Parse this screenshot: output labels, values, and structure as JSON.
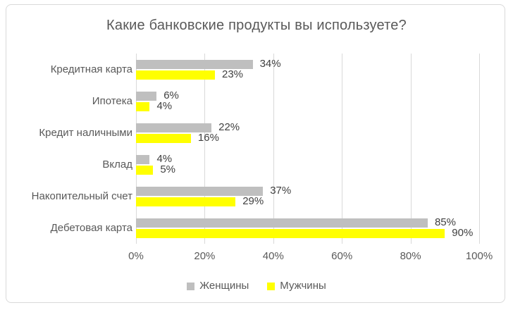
{
  "chart_data": {
    "type": "bar",
    "orientation": "horizontal",
    "title": "Какие банковские продукты вы используете?",
    "categories": [
      "Кредитная карта",
      "Ипотека",
      "Кредит наличными",
      "Вклад",
      "Накопительный счет",
      "Дебетовая карта"
    ],
    "series": [
      {
        "name": "Женщины",
        "color": "#BFBFBF",
        "values": [
          34,
          6,
          22,
          4,
          37,
          85
        ]
      },
      {
        "name": "Мужчины",
        "color": "#FFFF00",
        "values": [
          23,
          4,
          16,
          5,
          29,
          90
        ]
      }
    ],
    "value_suffix": "%",
    "data_labels": "outside-end",
    "x_axis": {
      "min": 0,
      "max": 100,
      "tick_step": 20,
      "tick_labels": [
        "0%",
        "20%",
        "40%",
        "60%",
        "80%",
        "100%"
      ]
    },
    "grid": true,
    "legend_position": "bottom"
  },
  "colors": {
    "frame_border": "#D9D9D9",
    "gridline": "#D9D9D9",
    "title_text": "#595959",
    "axis_text": "#595959",
    "data_label_text": "#404040",
    "background": "#FFFFFF"
  }
}
